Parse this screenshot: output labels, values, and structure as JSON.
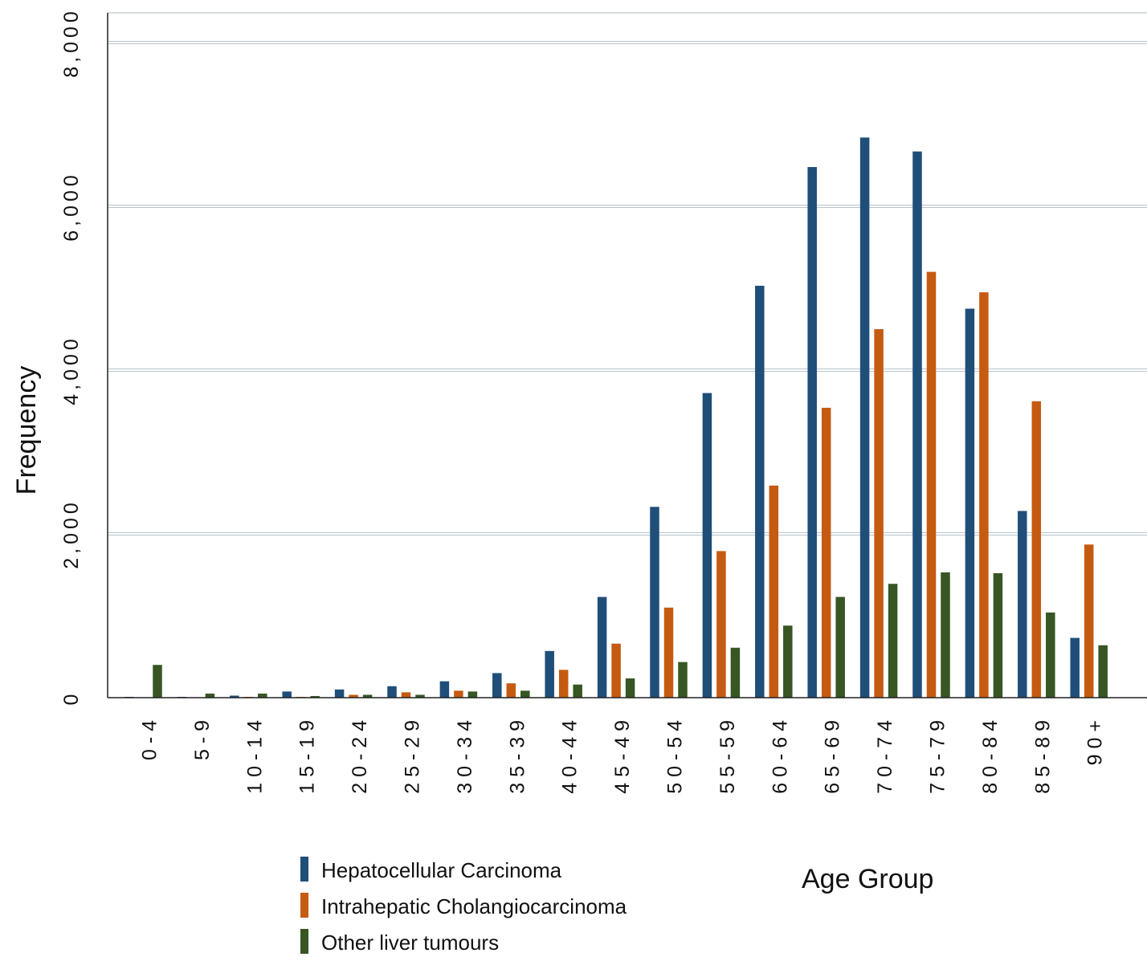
{
  "chart_data": {
    "type": "bar",
    "title": "",
    "xlabel": "Age Group",
    "ylabel": "Frequency",
    "ylim": [
      0,
      8000
    ],
    "yticks": [
      0,
      2000,
      4000,
      6000,
      8000
    ],
    "ytick_labels": [
      "0",
      "2,000",
      "4,000",
      "6,000",
      "8,000"
    ],
    "grid": "horizontal",
    "legend_position": "bottom-left",
    "categories": [
      "0-4",
      "5-9",
      "10-14",
      "15-19",
      "20-24",
      "25-29",
      "30-34",
      "35-39",
      "40-44",
      "45-49",
      "50-54",
      "55-59",
      "60-64",
      "65-69",
      "70-74",
      "75-79",
      "80-84",
      "85-89",
      "90+"
    ],
    "category_labels": [
      "0 - 4",
      "5 - 9",
      "1 0 - 1 4",
      "1 5 - 1 9",
      "2 0 - 2 4",
      "2 5 - 2 9",
      "3 0 - 3 4",
      "3 5 - 3 9",
      "4 0 - 4 4",
      "4 5 - 4 9",
      "5 0 - 5 4",
      "5 5 - 5 9",
      "6 0 - 6 4",
      "6 5 - 6 9",
      "7 0 - 7 4",
      "7 5 - 7 9",
      "8 0 - 8 4",
      "8 5 - 8 9",
      "9 0 +"
    ],
    "series": [
      {
        "name": "Hepatocellular Carcinoma",
        "color": "#1f4e79",
        "values": [
          10,
          10,
          25,
          75,
          100,
          140,
          200,
          300,
          570,
          1230,
          2330,
          3720,
          5030,
          6480,
          6840,
          6670,
          4750,
          2280,
          730
        ]
      },
      {
        "name": "Intrahepatic Cholangiocarcinoma",
        "color": "#c55a11",
        "values": [
          0,
          0,
          10,
          10,
          35,
          65,
          85,
          175,
          340,
          660,
          1100,
          1790,
          2590,
          3540,
          4500,
          5200,
          4950,
          3620,
          1870
        ]
      },
      {
        "name": "Other liver tumours",
        "color": "#375623",
        "values": [
          400,
          50,
          50,
          20,
          35,
          35,
          75,
          85,
          160,
          235,
          435,
          610,
          880,
          1230,
          1390,
          1530,
          1520,
          1040,
          640
        ]
      }
    ]
  }
}
